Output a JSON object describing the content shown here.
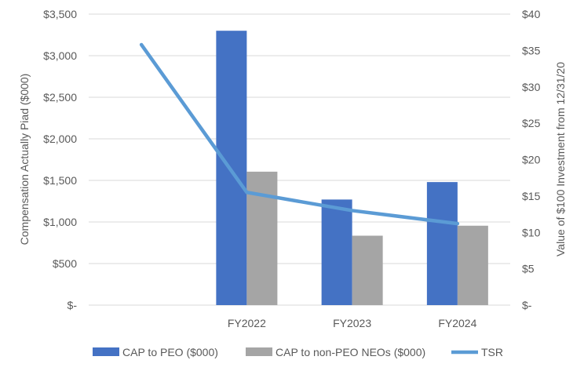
{
  "chart_data": {
    "type": "bar",
    "categories": [
      "",
      "FY2022",
      "FY2023",
      "FY2024"
    ],
    "series": [
      {
        "name": "CAP to PEO ($000)",
        "kind": "bar",
        "axis": "left",
        "color": "#4472C4",
        "values": [
          0,
          3300,
          1270,
          1480
        ]
      },
      {
        "name": "CAP to non-PEO NEOs ($000)",
        "kind": "bar",
        "axis": "left",
        "color": "#A5A5A5",
        "values": [
          0,
          1605,
          835,
          955
        ]
      },
      {
        "name": "TSR",
        "kind": "line",
        "axis": "right",
        "color": "#5B9BD5",
        "values": [
          35.8,
          15.5,
          13,
          11.2
        ]
      }
    ],
    "ylabel": "Compensation Actually Piad ($000)",
    "y2label": "Value of $100 Investment from 12/31/20",
    "ylim": [
      0,
      3500
    ],
    "y2lim": [
      0,
      40
    ],
    "yticks": [
      "$-",
      "$500",
      "$1,000",
      "$1,500",
      "$2,000",
      "$2,500",
      "$3,000",
      "$3,500"
    ],
    "y2ticks": [
      "$-",
      "$5",
      "$10",
      "$15",
      "$20",
      "$25",
      "$30",
      "$35",
      "$40"
    ],
    "legend": "bottom",
    "grid": true
  }
}
